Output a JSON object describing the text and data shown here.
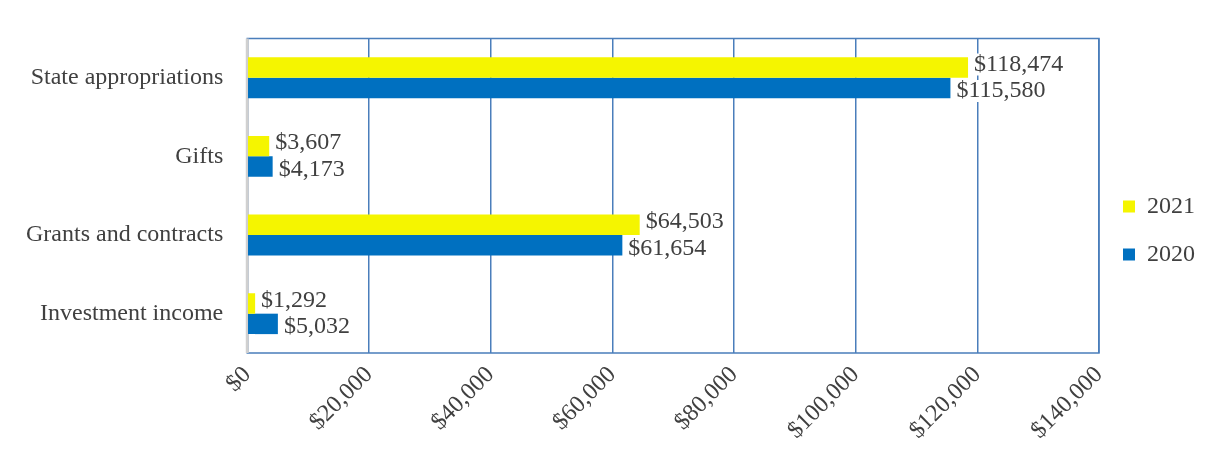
{
  "chart_data": {
    "type": "bar",
    "orientation": "horizontal",
    "categories": [
      "State appropriations",
      "Gifts",
      "Grants and contracts",
      "Investment income"
    ],
    "series": [
      {
        "name": "2021",
        "color": "#f5f500",
        "values": [
          118474,
          3607,
          64503,
          1292
        ],
        "value_labels": [
          "$118,474",
          "$3,607",
          "$64,503",
          "$1,292"
        ]
      },
      {
        "name": "2020",
        "color": "#0070c0",
        "values": [
          115580,
          4173,
          61654,
          5032
        ],
        "value_labels": [
          "$115,580",
          "$4,173",
          "$61,654",
          "$5,032"
        ]
      }
    ],
    "xlim": [
      0,
      140000
    ],
    "xticks": [
      {
        "value": 0,
        "label": "$0"
      },
      {
        "value": 20000,
        "label": "$20,000"
      },
      {
        "value": 40000,
        "label": "$40,000"
      },
      {
        "value": 60000,
        "label": "$60,000"
      },
      {
        "value": 80000,
        "label": "$80,000"
      },
      {
        "value": 100000,
        "label": "$100,000"
      },
      {
        "value": 120000,
        "label": "$120,000"
      },
      {
        "value": 140000,
        "label": "$140,000"
      }
    ],
    "grid": "x",
    "legend": "right"
  }
}
